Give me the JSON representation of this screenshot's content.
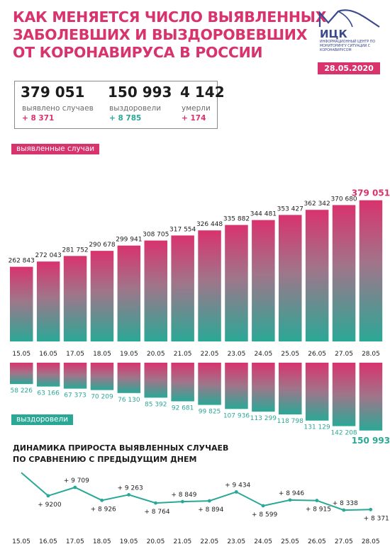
{
  "header": {
    "title_lines": [
      "Как меняется число выявленных",
      "заболевших и выздоровевших",
      "от коронавируса в России"
    ],
    "logo_text": "ИЦК",
    "logo_sub": "Информационный центр по мониторингу ситуации с коронавирусом",
    "date": "28.05.2020"
  },
  "stats": {
    "detected": {
      "value": "379 051",
      "label": "выявлено случаев",
      "delta": "+ 8 371"
    },
    "recovered": {
      "value": "150 993",
      "label": "выздоровели",
      "delta": "+ 8 785"
    },
    "deaths": {
      "value": "4 142",
      "label": "умерли",
      "delta": "+ 174"
    }
  },
  "labels": {
    "cases": "выявленные случаи",
    "recovered": "выздоровели"
  },
  "colors": {
    "pink": "#d8336d",
    "teal": "#2aa896",
    "dark_text": "#1c1c1c",
    "delta_green": "#2aa896",
    "line": "#2aa896"
  },
  "chart_data": [
    {
      "type": "bar",
      "categories": [
        "15.05",
        "16.05",
        "17.05",
        "18.05",
        "19.05",
        "20.05",
        "21.05",
        "22.05",
        "23.05",
        "24.05",
        "25.05",
        "26.05",
        "27.05",
        "28.05"
      ],
      "series": [
        {
          "name": "выявленные случаи",
          "values": [
            262843,
            272043,
            281752,
            290678,
            299941,
            308705,
            317554,
            326448,
            335882,
            344481,
            353427,
            362342,
            370680,
            379051
          ],
          "labels": [
            "262 843",
            "272 043",
            "281 752",
            "290 678",
            "299 941",
            "308 705",
            "317 554",
            "326 448",
            "335 882",
            "344 481",
            "353 427",
            "362 342",
            "370 680",
            "379 051"
          ]
        },
        {
          "name": "выздоровели",
          "values": [
            58226,
            63166,
            67373,
            70209,
            76130,
            85392,
            92681,
            99825,
            107936,
            113299,
            118798,
            131129,
            142208,
            150993
          ],
          "labels": [
            "58 226",
            "63 166",
            "67 373",
            "70 209",
            "76 130",
            "85 392",
            "92 681",
            "99 825",
            "107 936",
            "113 299",
            "118 798",
            "131 129",
            "142 208",
            "150 993"
          ]
        }
      ]
    },
    {
      "type": "line",
      "title_lines": [
        "Динамика прироста выявленных случаев",
        "по сравнению с предыдущим днем"
      ],
      "categories": [
        "15.05",
        "16.05",
        "17.05",
        "18.05",
        "19.05",
        "20.05",
        "21.05",
        "22.05",
        "23.05",
        "24.05",
        "25.05",
        "26.05",
        "27.05",
        "28.05"
      ],
      "values": [
        10598,
        9200,
        9709,
        8926,
        9263,
        8764,
        8849,
        8894,
        9434,
        8599,
        8946,
        8915,
        8338,
        8371
      ],
      "labels": [
        "",
        "+ 9200",
        "+ 9 709",
        "+ 8 926",
        "+ 9 263",
        "+ 8 764",
        "+ 8 849",
        "+ 8 894",
        "+ 9 434",
        "+ 8 599",
        "+ 8 946",
        "+ 8 915",
        "+ 8 338",
        "+ 8 371"
      ]
    }
  ]
}
